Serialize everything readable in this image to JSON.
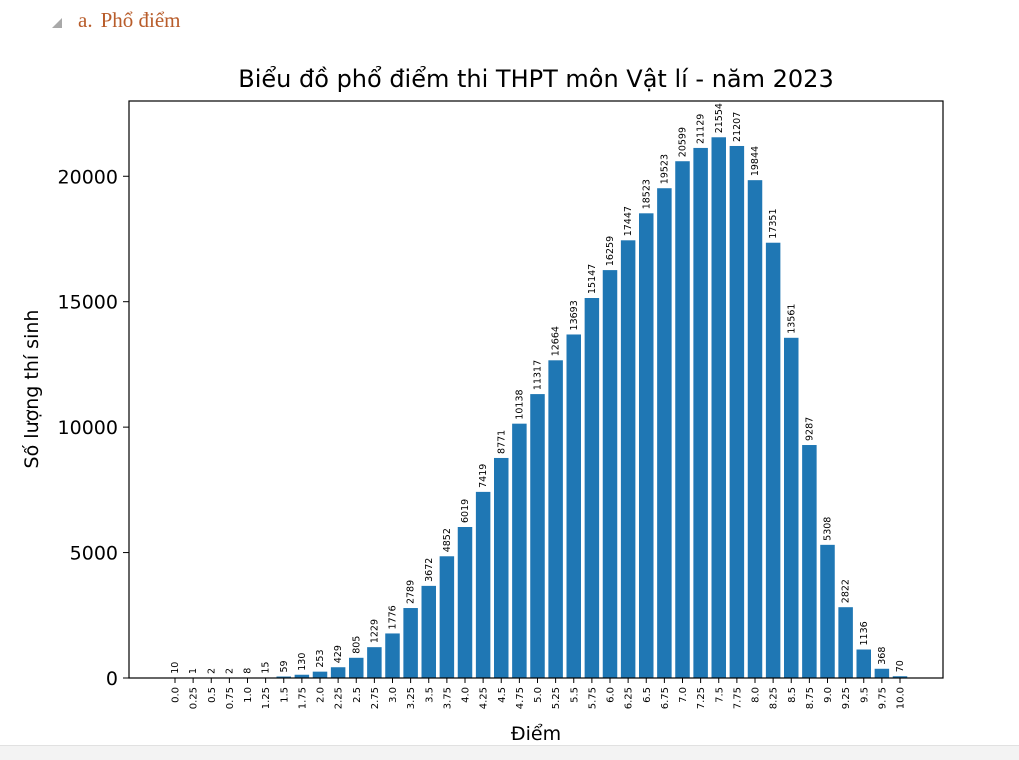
{
  "heading": {
    "marker": "a.",
    "text": "Phổ điểm",
    "color": "#b85c2a"
  },
  "chart_data": {
    "type": "bar",
    "title": "Biểu đồ phổ điểm thi THPT môn Vật lí - năm 2023",
    "xlabel": "Điểm",
    "ylabel": "Số lượng thí sinh",
    "ylim": [
      0,
      23000
    ],
    "yticks": [
      0,
      5000,
      10000,
      15000,
      20000
    ],
    "grid": false,
    "bar_color": "#1f77b4",
    "categories": [
      "0.0",
      "0.25",
      "0.5",
      "0.75",
      "1.0",
      "1.25",
      "1.5",
      "1.75",
      "2.0",
      "2.25",
      "2.5",
      "2.75",
      "3.0",
      "3.25",
      "3.5",
      "3.75",
      "4.0",
      "4.25",
      "4.5",
      "4.75",
      "5.0",
      "5.25",
      "5.5",
      "5.75",
      "6.0",
      "6.25",
      "6.5",
      "6.75",
      "7.0",
      "7.25",
      "7.5",
      "7.75",
      "8.0",
      "8.25",
      "8.5",
      "8.75",
      "9.0",
      "9.25",
      "9.5",
      "9.75",
      "10.0"
    ],
    "values": [
      10,
      1,
      2,
      2,
      8,
      15,
      59,
      130,
      253,
      429,
      805,
      1229,
      1776,
      2789,
      3672,
      4852,
      6019,
      7419,
      8771,
      10138,
      11317,
      12664,
      13693,
      15147,
      16259,
      17447,
      18523,
      19523,
      20599,
      21129,
      21554,
      21207,
      19844,
      17351,
      13561,
      9287,
      5308,
      2822,
      1136,
      368,
      70
    ]
  }
}
